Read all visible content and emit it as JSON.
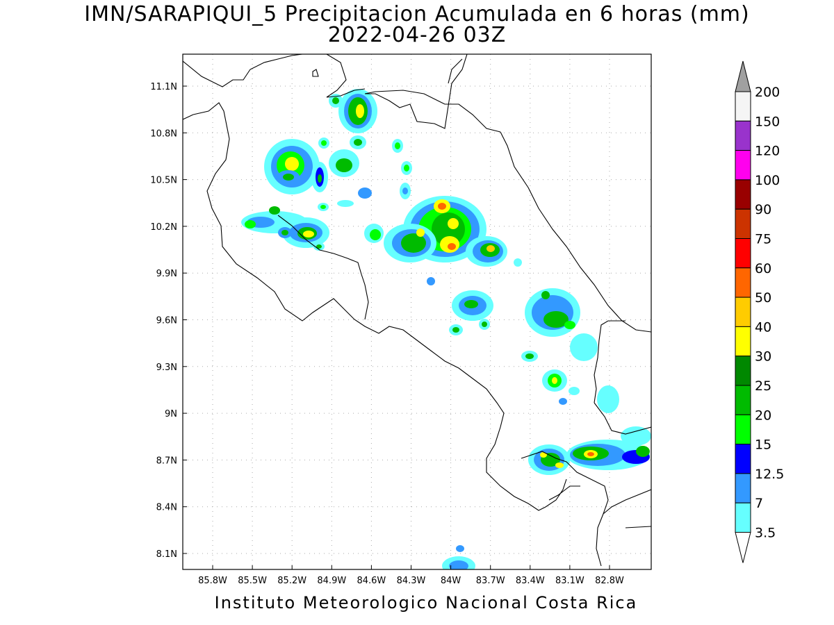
{
  "title": "IMN/SARAPIQUI_5 Precipitacion Acumulada en 6 horas (mm)",
  "subtitle": "2022-04-26 03Z",
  "footer": "Instituto Meteorologico Nacional Costa Rica",
  "axes": {
    "lon_ticks": [
      "85.8W",
      "85.5W",
      "85.2W",
      "84.9W",
      "84.6W",
      "84.3W",
      "84W",
      "83.7W",
      "83.4W",
      "83.1W",
      "82.8W"
    ],
    "lat_ticks": [
      "11.1N",
      "10.8N",
      "10.5N",
      "10.2N",
      "9.9N",
      "9.6N",
      "9.3N",
      "9N",
      "8.7N",
      "8.4N",
      "8.1N"
    ],
    "grid": "dotted"
  },
  "colorbar": {
    "labels": [
      "200",
      "150",
      "120",
      "100",
      "90",
      "75",
      "60",
      "50",
      "40",
      "30",
      "25",
      "20",
      "15",
      "12.5",
      "7",
      "3.5"
    ],
    "colors": [
      "#a0a0a0",
      "#f5f5f5",
      "#9933cc",
      "#ff00ee",
      "#990000",
      "#cc3300",
      "#ff0000",
      "#ff6600",
      "#ffcc00",
      "#ffff00",
      "#008800",
      "#00bb00",
      "#00ff00",
      "#0000ff",
      "#3399ff",
      "#66ffff"
    ]
  }
}
